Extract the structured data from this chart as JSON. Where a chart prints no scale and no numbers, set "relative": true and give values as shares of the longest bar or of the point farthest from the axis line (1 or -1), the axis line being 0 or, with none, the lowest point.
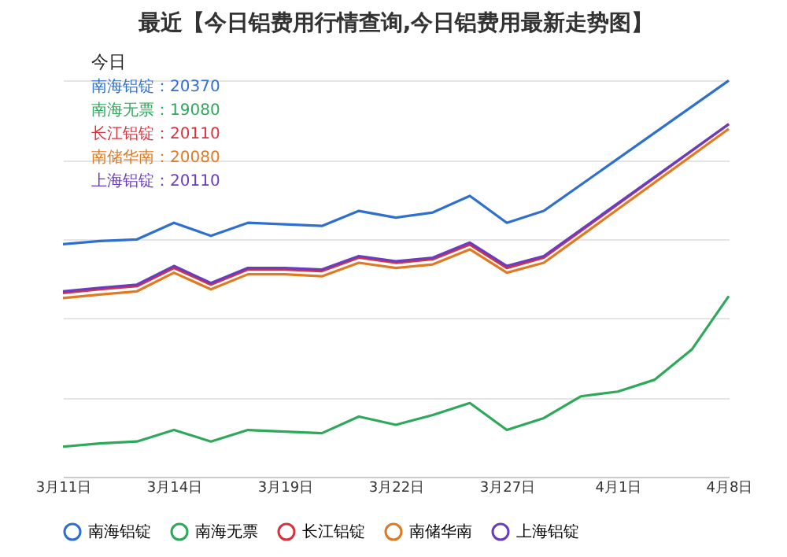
{
  "chart_data": {
    "type": "line",
    "title": "最近【今日铝费用行情查询,今日铝费用最新走势图】",
    "categories": [
      "3月11日",
      null,
      null,
      "3月14日",
      null,
      null,
      "3月19日",
      null,
      null,
      "3月22日",
      null,
      null,
      "3月27日",
      null,
      null,
      "4月1日",
      null,
      null,
      "4月8日"
    ],
    "relative": true,
    "series": [
      {
        "name": "南海铝锭",
        "color": "#2e6fd0",
        "values": [
          0.587,
          0.595,
          0.599,
          0.641,
          0.608,
          0.641,
          0.637,
          0.633,
          0.671,
          0.654,
          0.667,
          0.709,
          0.641,
          0.671,
          null,
          null,
          null,
          null,
          1
        ]
      },
      {
        "name": "南海无票",
        "color": "#2ea85a",
        "values": [
          0.076,
          0.084,
          0.089,
          0.118,
          0.089,
          0.118,
          0.114,
          0.11,
          0.152,
          0.131,
          0.156,
          0.186,
          0.118,
          0.148,
          0.203,
          0.215,
          0.245,
          0.321,
          0.456
        ]
      },
      {
        "name": "长江铝锭",
        "color": "#d8323c",
        "values": [
          0.464,
          0.473,
          0.481,
          0.527,
          0.485,
          0.523,
          0.523,
          0.519,
          0.553,
          0.54,
          0.549,
          0.586,
          0.527,
          0.553,
          null,
          null,
          null,
          null,
          0.89
        ]
      },
      {
        "name": "南储华南",
        "color": "#e07a22",
        "values": [
          0.451,
          0.46,
          0.468,
          0.515,
          0.473,
          0.511,
          0.511,
          0.506,
          0.54,
          0.527,
          0.536,
          0.574,
          0.515,
          0.54,
          null,
          null,
          null,
          null,
          0.878
        ]
      },
      {
        "name": "上海铝锭",
        "color": "#6a3cc0",
        "values": [
          0.468,
          0.477,
          0.485,
          0.532,
          0.489,
          0.527,
          0.527,
          0.523,
          0.557,
          0.544,
          0.553,
          0.591,
          0.532,
          0.557,
          null,
          null,
          null,
          null,
          0.89
        ]
      }
    ],
    "tick_labels": "x",
    "grid": "y",
    "legend": "bottom",
    "marker": "none",
    "line_style": "solid",
    "annotations": [
      "今日",
      "南海铝锭：20370",
      "南海无票：19080",
      "长江铝锭：20110",
      "南储华南：20080",
      "上海铝锭：20110"
    ]
  }
}
